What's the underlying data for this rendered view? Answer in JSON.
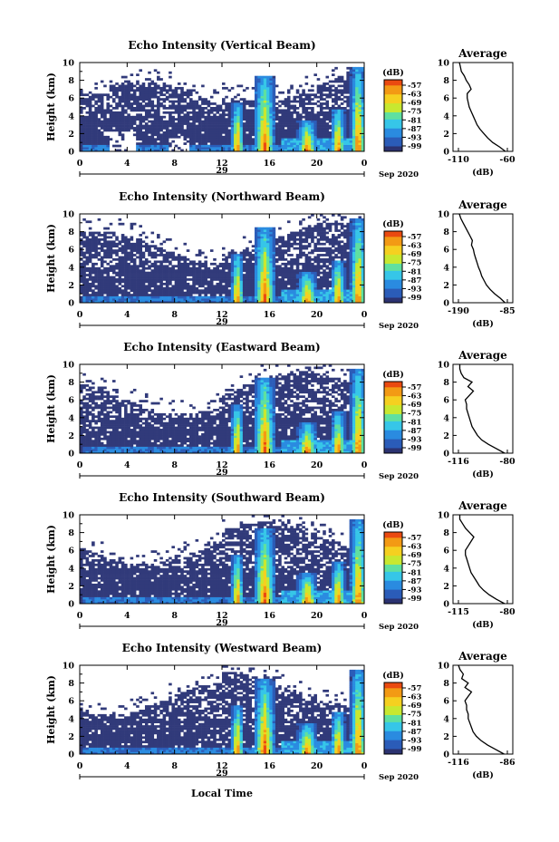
{
  "colors": {
    "background": "#313a7a",
    "colormap": [
      "#2b3270",
      "#2b5cb8",
      "#2a8be0",
      "#36c6e8",
      "#5fe0a0",
      "#c8e830",
      "#f5d020",
      "#f39a14",
      "#ea4a10"
    ]
  },
  "shared": {
    "x_ticks": [
      "0",
      "4",
      "8",
      "12",
      "16",
      "20",
      "0"
    ],
    "day_label": "29",
    "month_label": "Sep 2020",
    "x_axis_label": "Local Time",
    "y_axis_label": "Height (km)",
    "y_ticks": [
      "0",
      "2",
      "4",
      "6",
      "8",
      "10"
    ],
    "colorbar_unit": "(dB)",
    "colorbar_ticks": [
      "-57",
      "-63",
      "-69",
      "-75",
      "-81",
      "-87",
      "-93",
      "-99"
    ],
    "avg_title": "Average",
    "avg_xlabel": "(dB)"
  },
  "chart_data": [
    {
      "type": "heatmap",
      "title": "Echo Intensity (Vertical Beam)",
      "xlim": [
        0,
        24
      ],
      "ylim": [
        0,
        10
      ],
      "clim": [
        -99,
        -57
      ],
      "beam": "vertical",
      "average": {
        "type": "line",
        "xlim": [
          -110,
          -60
        ],
        "xticks": [
          "-110",
          "-60"
        ],
        "y": [
          0,
          0.5,
          1,
          1.5,
          2,
          2.5,
          3,
          3.5,
          4,
          4.5,
          5,
          5.5,
          6,
          6.5,
          7,
          7.5,
          8,
          8.5,
          9,
          9.5,
          10
        ],
        "x": [
          -62,
          -68,
          -75,
          -80,
          -84,
          -88,
          -91,
          -93,
          -95,
          -97,
          -99,
          -100,
          -101,
          -101,
          -97,
          -99,
          -102,
          -104,
          -107,
          -108,
          -109
        ]
      }
    },
    {
      "type": "heatmap",
      "title": "Echo Intensity (Northward Beam)",
      "xlim": [
        0,
        24
      ],
      "ylim": [
        0,
        10
      ],
      "clim": [
        -99,
        -57
      ],
      "beam": "northward",
      "average": {
        "type": "line",
        "xlim": [
          -190,
          -85
        ],
        "xticks": [
          "-190",
          "-85"
        ],
        "y": [
          0,
          0.5,
          1,
          1.5,
          2,
          2.5,
          3,
          3.5,
          4,
          4.5,
          5,
          5.5,
          6,
          6.5,
          7,
          7.5,
          8,
          8.5,
          9,
          9.5,
          10
        ],
        "x": [
          -90,
          -100,
          -112,
          -122,
          -130,
          -135,
          -140,
          -143,
          -147,
          -150,
          -153,
          -156,
          -158,
          -162,
          -160,
          -165,
          -170,
          -175,
          -180,
          -185,
          -188
        ]
      }
    },
    {
      "type": "heatmap",
      "title": "Echo Intensity (Eastward Beam)",
      "xlim": [
        0,
        24
      ],
      "ylim": [
        0,
        10
      ],
      "clim": [
        -99,
        -57
      ],
      "beam": "eastward",
      "average": {
        "type": "line",
        "xlim": [
          -116,
          -80
        ],
        "xticks": [
          "-116",
          "-80"
        ],
        "y": [
          0,
          0.5,
          1,
          1.5,
          2,
          2.5,
          3,
          3.5,
          4,
          4.5,
          5,
          5.5,
          6,
          6.5,
          7,
          7.5,
          8,
          8.5,
          9,
          9.5,
          10
        ],
        "x": [
          -82,
          -88,
          -94,
          -99,
          -102,
          -104,
          -106,
          -107,
          -108,
          -109,
          -110,
          -110,
          -111,
          -108,
          -105,
          -109,
          -106,
          -112,
          -114,
          -115,
          -115
        ]
      }
    },
    {
      "type": "heatmap",
      "title": "Echo Intensity (Southward Beam)",
      "xlim": [
        0,
        24
      ],
      "ylim": [
        0,
        10
      ],
      "clim": [
        -99,
        -57
      ],
      "beam": "southward",
      "average": {
        "type": "line",
        "xlim": [
          -115,
          -80
        ],
        "xticks": [
          "-115",
          "-80"
        ],
        "y": [
          0,
          0.5,
          1,
          1.5,
          2,
          2.5,
          3,
          3.5,
          4,
          4.5,
          5,
          5.5,
          6,
          6.5,
          7,
          7.5,
          8,
          8.5,
          9,
          9.5,
          10
        ],
        "x": [
          -82,
          -88,
          -93,
          -97,
          -100,
          -102,
          -104,
          -106,
          -107,
          -108,
          -109,
          -110,
          -110,
          -108,
          -106,
          -104,
          -107,
          -110,
          -112,
          -114,
          -114
        ]
      }
    },
    {
      "type": "heatmap",
      "title": "Echo Intensity (Westward Beam)",
      "xlim": [
        0,
        24
      ],
      "ylim": [
        0,
        10
      ],
      "clim": [
        -99,
        -57
      ],
      "beam": "westward",
      "average": {
        "type": "line",
        "xlim": [
          -116,
          -86
        ],
        "xticks": [
          "-116",
          "-86"
        ],
        "y": [
          0,
          0.5,
          1,
          1.5,
          2,
          2.5,
          3,
          3.5,
          4,
          4.5,
          5,
          5.5,
          6,
          6.5,
          7,
          7.5,
          8,
          8.5,
          9,
          9.5,
          10
        ],
        "x": [
          -88,
          -93,
          -98,
          -102,
          -105,
          -107,
          -108,
          -109,
          -110,
          -110,
          -111,
          -111,
          -112,
          -110,
          -108,
          -112,
          -110,
          -114,
          -113,
          -115,
          -116
        ]
      }
    }
  ]
}
